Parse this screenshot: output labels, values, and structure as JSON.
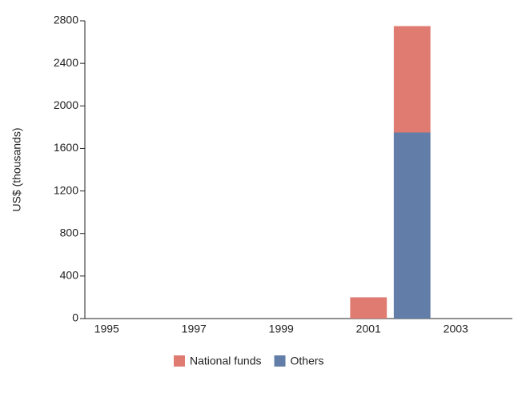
{
  "chart_data": {
    "type": "stacked_bar",
    "y_label": "US$ (thousands)",
    "categories": [
      "1995",
      null,
      "1997",
      null,
      "1999",
      null,
      "2001",
      null,
      "2003",
      null
    ],
    "series": [
      {
        "name": "National funds",
        "color": "#e07b72",
        "values": [
          null,
          null,
          null,
          null,
          null,
          null,
          200,
          1000,
          null,
          null
        ]
      },
      {
        "name": "Others",
        "color": "#627ea8",
        "values": [
          null,
          null,
          null,
          null,
          null,
          null,
          null,
          1750,
          null,
          null
        ]
      }
    ],
    "ylim": [
      0,
      2800
    ],
    "yticks": [
      0,
      400,
      800,
      1200,
      1600,
      2000,
      2400,
      2800
    ],
    "stack_order": "bottom-up-reversed"
  }
}
